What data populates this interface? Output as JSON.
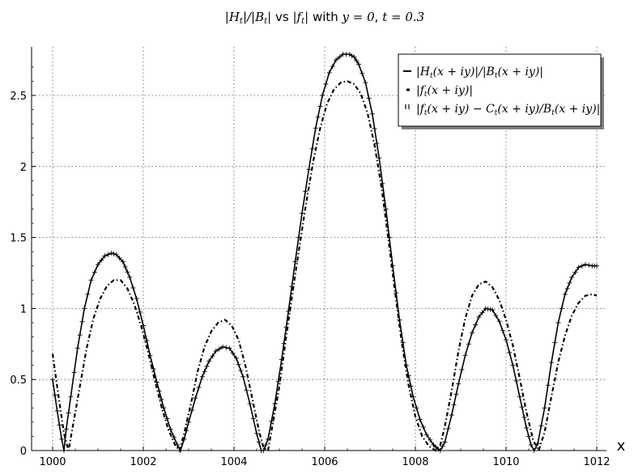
{
  "chart_data": {
    "type": "line",
    "title_math_1": "|H",
    "title_math_1_sub": "t",
    "title_math_2": "|/|B",
    "title_math_2_sub": "t",
    "title_math_3": "|",
    "title_vs": " vs ",
    "title_math_4": "|f",
    "title_math_4_sub": "t",
    "title_math_5": "|",
    "title_with": " with ",
    "title_math_6": "y = 0",
    "title_comma": ", ",
    "title_math_7": "t = 0.3",
    "xlabel": "x",
    "ylabel": "",
    "xlim": [
      999.7,
      1012.3
    ],
    "ylim": [
      0,
      2.84
    ],
    "xticks": [
      1000,
      1002,
      1004,
      1006,
      1008,
      1010,
      1012
    ],
    "xtick_labels": [
      "1000",
      "1002",
      "1004",
      "1006",
      "1008",
      "1010",
      "1012"
    ],
    "yticks": [
      0,
      0.5,
      1,
      1.5,
      2,
      2.5
    ],
    "ytick_labels": [
      "0",
      "0.5",
      "1",
      "1.5",
      "2",
      "2.5"
    ],
    "grid": true,
    "legend_position": "top-right",
    "series": [
      {
        "name": "|H_t(x+iy)|/|B_t(x+iy)|",
        "style": "solid",
        "color": "#000000",
        "x": [
          1000.0,
          1000.1,
          1000.2,
          1000.25,
          1000.3,
          1000.4,
          1000.55,
          1000.7,
          1000.85,
          1001.0,
          1001.15,
          1001.3,
          1001.4,
          1001.55,
          1001.7,
          1001.85,
          1002.0,
          1002.15,
          1002.3,
          1002.45,
          1002.6,
          1002.75,
          1002.82,
          1002.9,
          1003.0,
          1003.15,
          1003.3,
          1003.45,
          1003.6,
          1003.75,
          1003.9,
          1004.05,
          1004.2,
          1004.35,
          1004.5,
          1004.6,
          1004.65,
          1004.75,
          1004.9,
          1005.05,
          1005.2,
          1005.35,
          1005.5,
          1005.65,
          1005.8,
          1005.95,
          1006.1,
          1006.25,
          1006.4,
          1006.55,
          1006.65,
          1006.75,
          1006.9,
          1007.05,
          1007.2,
          1007.35,
          1007.5,
          1007.65,
          1007.8,
          1007.95,
          1008.1,
          1008.25,
          1008.4,
          1008.5,
          1008.55,
          1008.65,
          1008.8,
          1008.95,
          1009.1,
          1009.25,
          1009.4,
          1009.55,
          1009.7,
          1009.85,
          1010.0,
          1010.15,
          1010.3,
          1010.45,
          1010.55,
          1010.62,
          1010.7,
          1010.85,
          1011.0,
          1011.15,
          1011.3,
          1011.45,
          1011.6,
          1011.75,
          1011.9,
          1012.0
        ],
        "y": [
          0.5,
          0.28,
          0.08,
          0.0,
          0.15,
          0.38,
          0.72,
          1.0,
          1.2,
          1.31,
          1.37,
          1.39,
          1.38,
          1.33,
          1.22,
          1.07,
          0.88,
          0.67,
          0.48,
          0.3,
          0.15,
          0.04,
          0.0,
          0.08,
          0.2,
          0.37,
          0.52,
          0.63,
          0.7,
          0.73,
          0.72,
          0.65,
          0.52,
          0.33,
          0.12,
          0.0,
          0.0,
          0.08,
          0.33,
          0.64,
          0.98,
          1.33,
          1.67,
          1.98,
          2.27,
          2.5,
          2.66,
          2.75,
          2.79,
          2.79,
          2.77,
          2.72,
          2.59,
          2.37,
          2.06,
          1.7,
          1.3,
          0.92,
          0.6,
          0.38,
          0.22,
          0.11,
          0.04,
          0.01,
          0.0,
          0.06,
          0.25,
          0.47,
          0.67,
          0.83,
          0.94,
          1.0,
          0.99,
          0.91,
          0.78,
          0.6,
          0.38,
          0.16,
          0.04,
          0.0,
          0.05,
          0.3,
          0.62,
          0.9,
          1.1,
          1.22,
          1.29,
          1.31,
          1.3,
          1.3
        ]
      },
      {
        "name": "|f_t(x+iy)|",
        "style": "dashdot",
        "color": "#000000",
        "x": [
          1000.0,
          1000.1,
          1000.25,
          1000.35,
          1000.45,
          1000.6,
          1000.75,
          1000.9,
          1001.05,
          1001.2,
          1001.35,
          1001.5,
          1001.65,
          1001.8,
          1001.95,
          1002.1,
          1002.25,
          1002.4,
          1002.55,
          1002.7,
          1002.8,
          1002.9,
          1003.05,
          1003.2,
          1003.35,
          1003.5,
          1003.65,
          1003.8,
          1003.95,
          1004.1,
          1004.25,
          1004.4,
          1004.55,
          1004.65,
          1004.75,
          1004.85,
          1005.0,
          1005.15,
          1005.3,
          1005.45,
          1005.6,
          1005.75,
          1005.9,
          1006.05,
          1006.2,
          1006.35,
          1006.5,
          1006.65,
          1006.8,
          1006.95,
          1007.1,
          1007.25,
          1007.4,
          1007.55,
          1007.7,
          1007.85,
          1008.0,
          1008.15,
          1008.3,
          1008.45,
          1008.55,
          1008.65,
          1008.8,
          1008.95,
          1009.1,
          1009.25,
          1009.4,
          1009.55,
          1009.7,
          1009.85,
          1010.0,
          1010.15,
          1010.3,
          1010.45,
          1010.6,
          1010.72,
          1010.85,
          1011.0,
          1011.15,
          1011.3,
          1011.45,
          1011.6,
          1011.75,
          1011.9,
          1012.0
        ],
        "y": [
          0.68,
          0.45,
          0.12,
          0.0,
          0.18,
          0.45,
          0.72,
          0.93,
          1.07,
          1.16,
          1.2,
          1.2,
          1.14,
          1.03,
          0.88,
          0.7,
          0.5,
          0.31,
          0.15,
          0.04,
          0.0,
          0.12,
          0.33,
          0.56,
          0.73,
          0.84,
          0.9,
          0.92,
          0.88,
          0.78,
          0.6,
          0.37,
          0.14,
          0.02,
          0.0,
          0.18,
          0.45,
          0.8,
          1.13,
          1.45,
          1.76,
          2.04,
          2.27,
          2.44,
          2.54,
          2.59,
          2.6,
          2.58,
          2.51,
          2.37,
          2.15,
          1.86,
          1.5,
          1.12,
          0.76,
          0.46,
          0.24,
          0.1,
          0.03,
          0.0,
          0.04,
          0.17,
          0.42,
          0.7,
          0.93,
          1.09,
          1.17,
          1.19,
          1.15,
          1.06,
          0.92,
          0.74,
          0.51,
          0.27,
          0.07,
          0.0,
          0.13,
          0.38,
          0.62,
          0.81,
          0.95,
          1.04,
          1.09,
          1.1,
          1.09
        ]
      },
      {
        "name": "|f_t(x+iy) − C_t(x+iy)/B_t(x+iy)|",
        "style": "plus-markers",
        "color": "#000000",
        "x": [
          1000.0,
          1000.1,
          1000.2,
          1000.25,
          1000.3,
          1000.4,
          1000.55,
          1000.7,
          1000.85,
          1001.0,
          1001.15,
          1001.3,
          1001.4,
          1001.55,
          1001.7,
          1001.85,
          1002.0,
          1002.15,
          1002.3,
          1002.45,
          1002.6,
          1002.75,
          1002.82,
          1002.9,
          1003.0,
          1003.15,
          1003.3,
          1003.45,
          1003.6,
          1003.75,
          1003.9,
          1004.05,
          1004.2,
          1004.35,
          1004.5,
          1004.6,
          1004.65,
          1004.75,
          1004.9,
          1005.05,
          1005.2,
          1005.35,
          1005.5,
          1005.65,
          1005.8,
          1005.95,
          1006.1,
          1006.25,
          1006.4,
          1006.55,
          1006.65,
          1006.75,
          1006.9,
          1007.05,
          1007.2,
          1007.35,
          1007.5,
          1007.65,
          1007.8,
          1007.95,
          1008.1,
          1008.25,
          1008.4,
          1008.5,
          1008.55,
          1008.65,
          1008.8,
          1008.95,
          1009.1,
          1009.25,
          1009.4,
          1009.55,
          1009.7,
          1009.85,
          1010.0,
          1010.15,
          1010.3,
          1010.45,
          1010.55,
          1010.62,
          1010.7,
          1010.85,
          1011.0,
          1011.15,
          1011.3,
          1011.45,
          1011.6,
          1011.75,
          1011.9,
          1012.0
        ],
        "y": [
          0.5,
          0.28,
          0.08,
          0.0,
          0.15,
          0.38,
          0.72,
          1.0,
          1.2,
          1.31,
          1.37,
          1.39,
          1.38,
          1.33,
          1.22,
          1.07,
          0.88,
          0.67,
          0.48,
          0.3,
          0.15,
          0.04,
          0.0,
          0.08,
          0.2,
          0.37,
          0.52,
          0.63,
          0.7,
          0.73,
          0.72,
          0.65,
          0.52,
          0.33,
          0.12,
          0.0,
          0.0,
          0.08,
          0.33,
          0.64,
          0.98,
          1.33,
          1.67,
          1.98,
          2.27,
          2.5,
          2.66,
          2.75,
          2.79,
          2.79,
          2.77,
          2.72,
          2.59,
          2.37,
          2.06,
          1.7,
          1.3,
          0.92,
          0.6,
          0.38,
          0.22,
          0.11,
          0.04,
          0.01,
          0.0,
          0.06,
          0.25,
          0.47,
          0.67,
          0.83,
          0.94,
          1.0,
          0.99,
          0.91,
          0.78,
          0.6,
          0.38,
          0.16,
          0.04,
          0.0,
          0.05,
          0.3,
          0.62,
          0.9,
          1.1,
          1.22,
          1.29,
          1.31,
          1.3,
          1.3
        ]
      }
    ],
    "legend": {
      "entries": [
        {
          "label_a": "|H",
          "label_a_sub": "t",
          "label_b": "(x + iy)|/|B",
          "label_b_sub": "t",
          "label_c": "(x + iy)|"
        },
        {
          "label_a": "|f",
          "label_a_sub": "t",
          "label_b": "(x + iy)|",
          "label_b_sub": "",
          "label_c": ""
        },
        {
          "label_a": "|f",
          "label_a_sub": "t",
          "label_b": "(x + iy) − C",
          "label_b_sub": "t",
          "label_c": "(x + iy)/B",
          "label_c_sub": "t",
          "label_d": "(x + iy)|"
        }
      ]
    }
  }
}
